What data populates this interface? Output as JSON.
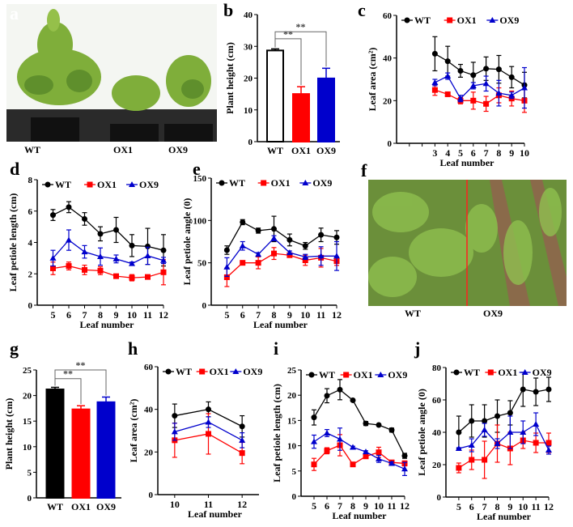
{
  "panel_letters": {
    "a": "a",
    "b": "b",
    "c": "c",
    "d": "d",
    "e": "e",
    "f": "f",
    "g": "g",
    "h": "h",
    "i": "i",
    "j": "j"
  },
  "photo_a": {
    "labels": [
      "WT",
      "OX1",
      "OX9"
    ]
  },
  "photo_f": {
    "labels": [
      "WT",
      "OX9"
    ],
    "divider_color": "#ff2020"
  },
  "colors": {
    "WT": "#000000",
    "OX1": "#ff0000",
    "OX9": "#0000cc"
  },
  "chart_data": [
    {
      "panel": "b",
      "type": "bar",
      "categories": [
        "WT",
        "OX1",
        "OX9"
      ],
      "values": [
        28.7,
        15.0,
        19.9
      ],
      "errors": [
        0.5,
        2.3,
        3.2
      ],
      "fills": [
        "#ffffff",
        "#ff0000",
        "#0000cc"
      ],
      "ylabel": "Plant height (cm)",
      "ylim": [
        0,
        40
      ],
      "yticks": [
        0,
        10,
        20,
        30,
        40
      ],
      "significance": [
        {
          "from": "WT",
          "to": "OX1",
          "label": "**",
          "level": 32.4
        },
        {
          "from": "WT",
          "to": "OX9",
          "label": "**",
          "level": 34.6
        }
      ]
    },
    {
      "panel": "c",
      "type": "line",
      "xlabel": "Leaf number",
      "ylabel": "Leaf area (cm²)",
      "ylim": [
        0,
        60
      ],
      "yticks": [
        0,
        20,
        40,
        60
      ],
      "xlim": [
        0,
        10
      ],
      "xticks": [
        1,
        2,
        3,
        4,
        5,
        6,
        7,
        8,
        9,
        10
      ],
      "xticklabels": [
        "",
        "",
        "3",
        "4",
        "5",
        "6",
        "7",
        "8",
        "9",
        "10"
      ],
      "x": [
        3,
        4,
        5,
        6,
        7,
        8,
        9,
        10
      ],
      "series": [
        {
          "name": "WT",
          "marker": "circle",
          "values": [
            42,
            38.5,
            34,
            32,
            35,
            34.7,
            31,
            27.3
          ],
          "errors": [
            8,
            7,
            3,
            6,
            5.5,
            6.5,
            5,
            6
          ]
        },
        {
          "name": "OX1",
          "marker": "square",
          "values": [
            25,
            23,
            20,
            20,
            18.5,
            22.5,
            21,
            20
          ],
          "errors": [
            2.5,
            1,
            1.5,
            4,
            3.5,
            3.5,
            3.5,
            5.5
          ]
        },
        {
          "name": "OX9",
          "marker": "triangle",
          "values": [
            28.5,
            31.5,
            21,
            27,
            28,
            23.5,
            22.5,
            26
          ],
          "errors": [
            1.5,
            1.5,
            1.5,
            1.5,
            3.5,
            6,
            1.5,
            9.5
          ]
        }
      ]
    },
    {
      "panel": "d",
      "type": "line",
      "xlabel": "Leaf number",
      "ylabel": "Leaf petiole length (cm)",
      "ylim": [
        0,
        8
      ],
      "yticks": [
        0,
        2,
        4,
        6,
        8
      ],
      "xlim": [
        4,
        12
      ],
      "xticks": [
        5,
        6,
        7,
        8,
        9,
        10,
        11,
        12
      ],
      "xticklabels": [
        "5",
        "6",
        "7",
        "8",
        "9",
        "10",
        "11",
        "12"
      ],
      "x": [
        5,
        6,
        7,
        8,
        9,
        10,
        11,
        12
      ],
      "series": [
        {
          "name": "WT",
          "marker": "circle",
          "values": [
            5.75,
            6.25,
            5.5,
            4.55,
            4.8,
            3.8,
            3.75,
            3.5
          ],
          "errors": [
            0.35,
            0.35,
            0.4,
            0.45,
            0.8,
            0.7,
            1.15,
            1.0
          ]
        },
        {
          "name": "OX1",
          "marker": "square",
          "values": [
            2.35,
            2.5,
            2.25,
            2.2,
            1.85,
            1.75,
            1.8,
            2.1
          ],
          "errors": [
            0.4,
            0.25,
            0.3,
            0.25,
            0.1,
            0.2,
            0.1,
            0.8
          ]
        },
        {
          "name": "OX9",
          "marker": "triangle",
          "values": [
            3.0,
            4.15,
            3.4,
            3.1,
            2.95,
            2.65,
            3.15,
            2.85
          ],
          "errors": [
            0.5,
            0.65,
            0.4,
            0.55,
            0.25,
            0.1,
            0.55,
            0.2
          ]
        }
      ]
    },
    {
      "panel": "e",
      "type": "line",
      "xlabel": "Leaf number",
      "ylabel": "Leaf petiole angle (0)",
      "ylim": [
        0,
        150
      ],
      "yticks": [
        0,
        50,
        100,
        150
      ],
      "xlim": [
        4,
        12
      ],
      "xticks": [
        5,
        6,
        7,
        8,
        9,
        10,
        11,
        12
      ],
      "xticklabels": [
        "5",
        "6",
        "7",
        "8",
        "9",
        "10",
        "11",
        "12"
      ],
      "x": [
        5,
        6,
        7,
        8,
        9,
        10,
        11,
        12
      ],
      "series": [
        {
          "name": "WT",
          "marker": "circle",
          "values": [
            65,
            98,
            88,
            90,
            77,
            70,
            83,
            80
          ],
          "errors": [
            5,
            3,
            3,
            15,
            7,
            4,
            8,
            8
          ]
        },
        {
          "name": "OX1",
          "marker": "square",
          "values": [
            33,
            50,
            50,
            61,
            59,
            53,
            56,
            52
          ],
          "errors": [
            11,
            2,
            7,
            7,
            2,
            6,
            11,
            5
          ]
        },
        {
          "name": "OX9",
          "marker": "triangle",
          "values": [
            45,
            70,
            60,
            79,
            62,
            57,
            58,
            58
          ],
          "errors": [
            11,
            5,
            2,
            3,
            2,
            3,
            11,
            17
          ]
        }
      ]
    },
    {
      "panel": "g",
      "type": "bar",
      "categories": [
        "WT",
        "OX1",
        "OX9"
      ],
      "values": [
        21.2,
        17.3,
        18.7
      ],
      "errors": [
        0.4,
        0.7,
        1.0
      ],
      "fills": [
        "#000000",
        "#ff0000",
        "#0000cc"
      ],
      "ylabel": "Plant height (cm)",
      "ylim": [
        0,
        25
      ],
      "yticks": [
        0,
        5,
        10,
        15,
        20,
        25
      ],
      "significance": [
        {
          "from": "WT",
          "to": "OX1",
          "label": "**",
          "level": 23.3
        },
        {
          "from": "WT",
          "to": "OX9",
          "label": "**",
          "level": 25
        }
      ]
    },
    {
      "panel": "h",
      "type": "line",
      "xlabel": "Leaf number",
      "ylabel": "Leaf area (cm²)",
      "ylim": [
        0,
        60
      ],
      "yticks": [
        0,
        20,
        40,
        60
      ],
      "xlim": [
        9.5,
        12.5
      ],
      "xticks": [
        10,
        11,
        12
      ],
      "xticklabels": [
        "10",
        "11",
        "12"
      ],
      "x": [
        10,
        11,
        12
      ],
      "series": [
        {
          "name": "WT",
          "marker": "circle",
          "values": [
            37,
            40,
            32
          ],
          "errors": [
            5.5,
            3.5,
            5
          ]
        },
        {
          "name": "OX1",
          "marker": "square",
          "values": [
            25.5,
            28.5,
            19.5
          ],
          "errors": [
            8,
            9.5,
            5
          ]
        },
        {
          "name": "OX9",
          "marker": "triangle",
          "values": [
            29.5,
            34,
            25.5
          ],
          "errors": [
            4,
            2.5,
            3.5
          ]
        }
      ]
    },
    {
      "panel": "i",
      "type": "line",
      "xlabel": "Leaf number",
      "ylabel": "Leaf petiole length (cm)",
      "ylim": [
        0,
        25
      ],
      "yticks": [
        0,
        5,
        10,
        15,
        20,
        25
      ],
      "xlim": [
        4,
        12
      ],
      "xticks": [
        5,
        6,
        7,
        8,
        9,
        10,
        11,
        12
      ],
      "xticklabels": [
        "5",
        "6",
        "7",
        "8",
        "9",
        "10",
        "11",
        "12"
      ],
      "x": [
        5,
        6,
        7,
        8,
        9,
        10,
        11,
        12
      ],
      "series": [
        {
          "name": "WT",
          "marker": "circle",
          "values": [
            15.6,
            19.9,
            21.1,
            19,
            14.4,
            14.1,
            13.1,
            8
          ],
          "errors": [
            1.5,
            1.4,
            2,
            0.2,
            0.4,
            0.2,
            0.4,
            0.5
          ]
        },
        {
          "name": "OX1",
          "marker": "square",
          "values": [
            6.3,
            9,
            10.1,
            6.3,
            7.9,
            8.7,
            6.7,
            6.5
          ],
          "errors": [
            1.2,
            0.6,
            2.1,
            0.3,
            0.3,
            1,
            0.3,
            0.5
          ]
        },
        {
          "name": "OX9",
          "marker": "triangle",
          "values": [
            10.8,
            12.5,
            11.3,
            9.7,
            8.8,
            7.4,
            6.5,
            5.4
          ],
          "errors": [
            1.3,
            0.7,
            2.2,
            0.2,
            0.2,
            0.7,
            0.3,
            1.3
          ]
        }
      ]
    },
    {
      "panel": "j",
      "type": "line",
      "xlabel": "Leaf number",
      "ylabel": "Leaf petiole angle (0)",
      "ylim": [
        0,
        80
      ],
      "yticks": [
        0,
        20,
        40,
        60,
        80
      ],
      "xlim": [
        4,
        12
      ],
      "xticks": [
        5,
        6,
        7,
        8,
        9,
        10,
        11,
        12
      ],
      "xticklabels": [
        "5",
        "6",
        "7",
        "8",
        "9",
        "10",
        "11",
        "12"
      ],
      "x": [
        5,
        6,
        7,
        8,
        9,
        10,
        11,
        12
      ],
      "series": [
        {
          "name": "WT",
          "marker": "circle",
          "values": [
            40,
            47,
            47,
            50,
            52,
            66.5,
            65,
            66.5
          ],
          "errors": [
            10,
            10,
            10,
            10,
            7.5,
            10.5,
            8.5,
            7.5
          ]
        },
        {
          "name": "OX1",
          "marker": "square",
          "values": [
            18,
            23,
            23,
            33,
            30,
            35,
            33.5,
            33.5
          ],
          "errors": [
            3,
            6,
            11.5,
            11.5,
            10,
            5,
            6,
            6
          ]
        },
        {
          "name": "OX9",
          "marker": "triangle",
          "values": [
            30,
            32,
            41.5,
            33,
            40,
            40,
            45,
            29
          ],
          "errors": [
            0.5,
            4,
            4,
            3,
            10,
            7,
            7,
            2.5
          ]
        }
      ]
    }
  ]
}
